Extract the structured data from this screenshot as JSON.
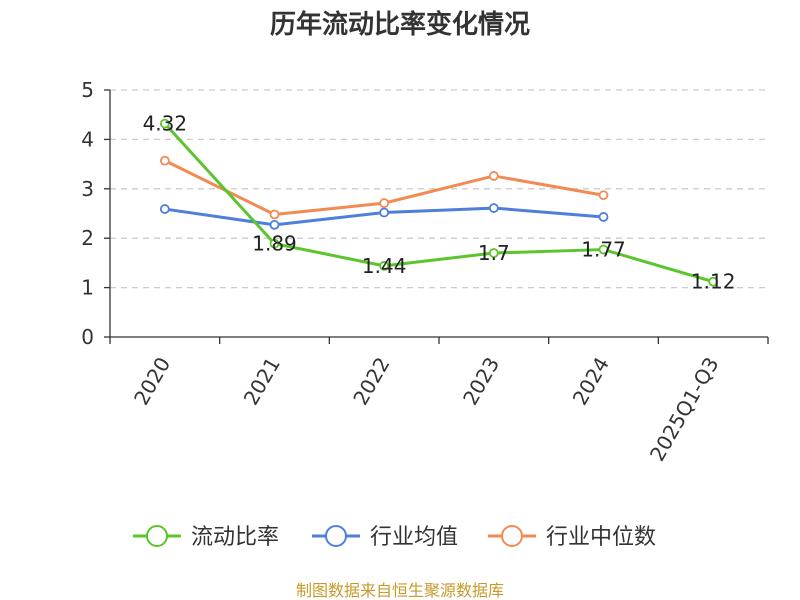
{
  "chart_data": {
    "type": "line",
    "title": "历年流动比率变化情况",
    "categories": [
      "2020",
      "2021",
      "2022",
      "2023",
      "2024",
      "2025Q1-Q3"
    ],
    "ylim": [
      0,
      5
    ],
    "yticks": [
      0,
      1,
      2,
      3,
      4,
      5
    ],
    "grid": true,
    "legend": "bottom",
    "series": [
      {
        "name": "流动比率",
        "color": "#5cc42c",
        "values": [
          4.32,
          1.89,
          1.44,
          1.7,
          1.77,
          1.12
        ],
        "labels": [
          "4.32",
          "1.89",
          "1.44",
          "1.7",
          "1.77",
          "1.12"
        ]
      },
      {
        "name": "行业均值",
        "color": "#4d7fdb",
        "values": [
          2.59,
          2.27,
          2.52,
          2.61,
          2.43,
          null
        ]
      },
      {
        "name": "行业中位数",
        "color": "#f28b53",
        "values": [
          3.57,
          2.48,
          2.71,
          3.26,
          2.87,
          null
        ]
      }
    ]
  },
  "source": "制图数据来自恒生聚源数据库"
}
